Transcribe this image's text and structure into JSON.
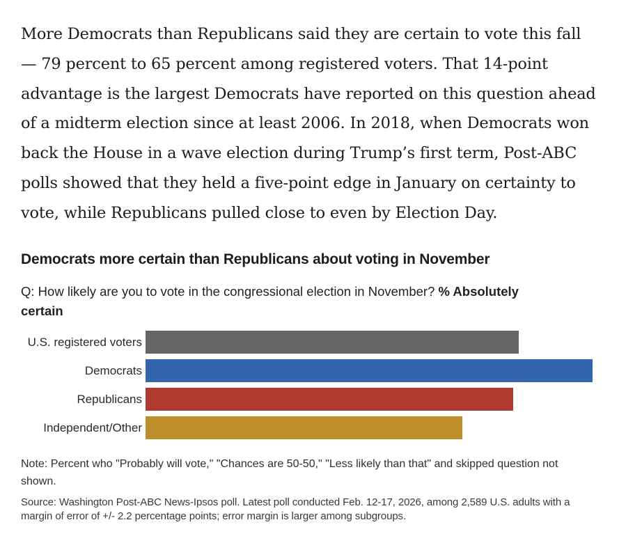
{
  "article": {
    "lines": [
      "More Democrats than Republicans said they are certain to vote this fall",
      "— 79 percent to 65 percent among registered voters. That 14-point",
      "advantage is the largest Democrats have reported on this question ahead",
      "of a midterm election since at least 2006. In 2018, when Democrats won",
      "back the House in a wave election during Trump’s first term, Post-ABC",
      "polls showed that they held a five-point edge in January on certainty to",
      "vote, while Republicans pulled close to even by Election Day."
    ]
  },
  "chart": {
    "headline": "Democrats more certain than Republicans about voting in November",
    "question": {
      "regular": "Q: How likely are you to vote in the congressional election in November? ",
      "bold_line1": "% Absolutely",
      "bold_line2": "certain"
    }
  },
  "chart_data": {
    "type": "bar",
    "orientation": "horizontal",
    "title": "Democrats more certain than Republicans about voting in November",
    "subtitle": "Q: How likely are you to vote in the congressional election in November? % Absolutely certain",
    "categories": [
      "U.S. registered voters",
      "Democrats",
      "Republicans",
      "Independent/Other"
    ],
    "values": [
      66,
      79,
      65,
      56
    ],
    "unit": "percent absolutely certain",
    "bar_colors": [
      "#656565",
      "#3265ad",
      "#b03a2f",
      "#be8e2d"
    ],
    "xlim": [
      0,
      79
    ],
    "grid": false,
    "legend": false,
    "value_labels_shown": false,
    "axis_shown": false
  },
  "note": {
    "line1": "Note: Percent who \"Probably will vote,\" \"Chances are 50-50,\" \"Less likely than that\" and skipped question not",
    "line2": "shown."
  },
  "source": {
    "line1": "Source: Washington Post-ABC News-Ipsos poll. Latest poll conducted Feb. 12-17, 2026, among 2,589 U.S. adults with a",
    "line2": "margin of error of +/- 2.2 percentage points; error margin is larger among subgroups."
  }
}
